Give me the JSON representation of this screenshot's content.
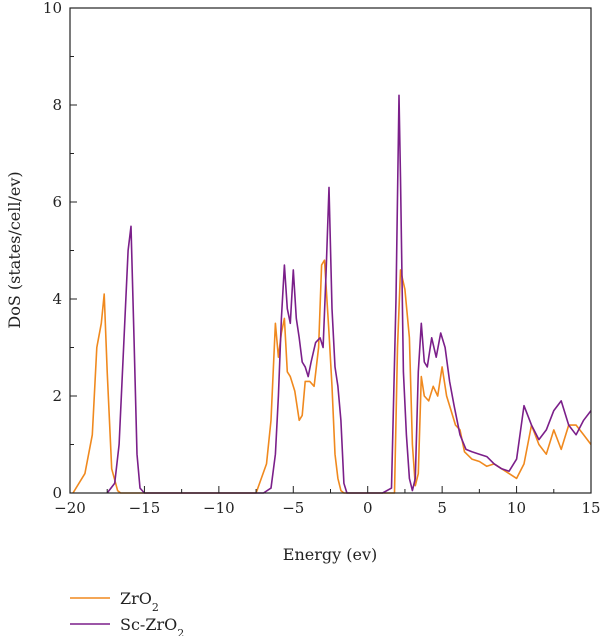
{
  "chart_data": {
    "type": "line",
    "xlabel": "Energy (ev)",
    "ylabel": "DoS (states/cell/ev)",
    "xlim": [
      -20,
      15
    ],
    "ylim": [
      0,
      10
    ],
    "xticks": [
      "−20",
      "−15",
      "−10",
      "−5",
      "0",
      "5",
      "10",
      "15"
    ],
    "xtick_values": [
      -20,
      -15,
      -10,
      -5,
      0,
      5,
      10,
      15
    ],
    "yticks": [
      "0",
      "2",
      "4",
      "6",
      "8",
      "10"
    ],
    "ytick_values": [
      0,
      2,
      4,
      6,
      8,
      10
    ],
    "grid": false,
    "legend_position": "below-left",
    "series": [
      {
        "name": "ZrO",
        "name_sub": "2",
        "color": "#f0891e",
        "x": [
          -19.8,
          -19.0,
          -18.5,
          -18.2,
          -17.9,
          -17.7,
          -17.5,
          -17.2,
          -16.8,
          -16.6,
          -16.4,
          -16.0,
          -7.5,
          -6.8,
          -6.5,
          -6.2,
          -6.0,
          -5.8,
          -5.6,
          -5.4,
          -5.2,
          -4.9,
          -4.6,
          -4.4,
          -4.2,
          -3.9,
          -3.6,
          -3.3,
          -3.1,
          -2.9,
          -2.8,
          -2.6,
          -2.4,
          -2.2,
          -2.0,
          -1.8,
          -1.6,
          -1.3,
          1.2,
          1.8,
          2.0,
          2.2,
          2.5,
          2.8,
          3.0,
          3.2,
          3.4,
          3.6,
          3.8,
          4.1,
          4.4,
          4.7,
          5.0,
          5.3,
          5.6,
          5.9,
          6.2,
          6.5,
          7.0,
          7.5,
          8.0,
          8.5,
          9.0,
          9.5,
          10.0,
          10.5,
          11.0,
          11.5,
          12.0,
          12.5,
          13.0,
          13.5,
          14.0,
          14.5,
          15.0
        ],
        "values": [
          0,
          0.4,
          1.2,
          3.0,
          3.5,
          4.1,
          2.5,
          0.5,
          0.05,
          0,
          0,
          0,
          0,
          0.6,
          1.5,
          3.5,
          2.8,
          3.3,
          3.6,
          2.5,
          2.4,
          2.1,
          1.5,
          1.6,
          2.3,
          2.3,
          2.2,
          3.0,
          4.7,
          4.8,
          4.3,
          3.3,
          2.2,
          0.8,
          0.3,
          0.05,
          0,
          0,
          0,
          0,
          3.0,
          4.6,
          4.2,
          3.2,
          1.0,
          0.15,
          0.4,
          2.4,
          2.0,
          1.9,
          2.2,
          2.0,
          2.6,
          2.0,
          1.7,
          1.4,
          1.3,
          0.85,
          0.7,
          0.65,
          0.55,
          0.6,
          0.5,
          0.4,
          0.3,
          0.6,
          1.4,
          1.0,
          0.8,
          1.3,
          0.9,
          1.4,
          1.4,
          1.2,
          1.0
        ]
      },
      {
        "name": "Sc-ZrO",
        "name_sub": "2",
        "color": "#7b1f8a",
        "x": [
          -17.5,
          -17.0,
          -16.7,
          -16.4,
          -16.1,
          -15.9,
          -15.7,
          -15.5,
          -15.3,
          -15.0,
          -7.0,
          -6.5,
          -6.2,
          -6.0,
          -5.8,
          -5.6,
          -5.4,
          -5.2,
          -5.0,
          -4.8,
          -4.6,
          -4.4,
          -4.2,
          -4.0,
          -3.8,
          -3.5,
          -3.2,
          -3.0,
          -2.8,
          -2.6,
          -2.4,
          -2.3,
          -2.2,
          -2.0,
          -1.8,
          -1.6,
          -1.4,
          -1.2,
          1.0,
          1.6,
          1.9,
          2.1,
          2.2,
          2.4,
          2.6,
          2.8,
          3.0,
          3.2,
          3.4,
          3.6,
          3.8,
          4.0,
          4.3,
          4.6,
          4.9,
          5.2,
          5.5,
          5.8,
          6.2,
          6.6,
          7.0,
          7.5,
          8.0,
          8.5,
          9.0,
          9.5,
          10.0,
          10.5,
          11.0,
          11.5,
          12.0,
          12.5,
          13.0,
          13.5,
          14.0,
          14.5,
          15.0
        ],
        "values": [
          0,
          0.2,
          1.0,
          3.0,
          5.0,
          5.5,
          3.2,
          0.8,
          0.1,
          0,
          0,
          0.1,
          0.8,
          2.0,
          3.6,
          4.7,
          3.8,
          3.5,
          4.6,
          3.6,
          3.2,
          2.7,
          2.6,
          2.4,
          2.7,
          3.1,
          3.2,
          3.0,
          4.5,
          6.3,
          3.8,
          3.2,
          2.6,
          2.2,
          1.5,
          0.2,
          0,
          0,
          0,
          0.1,
          4.0,
          8.2,
          6.5,
          2.5,
          1.2,
          0.3,
          0.05,
          0.3,
          2.5,
          3.5,
          2.7,
          2.6,
          3.2,
          2.8,
          3.3,
          3.0,
          2.3,
          1.8,
          1.2,
          0.9,
          0.85,
          0.8,
          0.75,
          0.6,
          0.5,
          0.45,
          0.7,
          1.8,
          1.4,
          1.1,
          1.3,
          1.7,
          1.9,
          1.4,
          1.2,
          1.5,
          1.7
        ]
      }
    ]
  }
}
